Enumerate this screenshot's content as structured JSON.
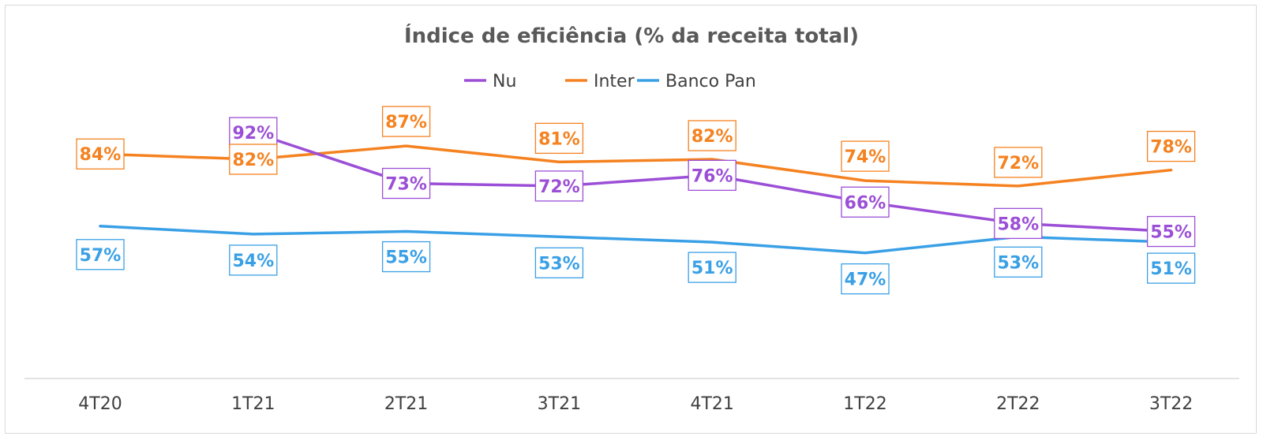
{
  "chart_data": {
    "type": "line",
    "title": "Índice de eficiência (% da receita total)",
    "xlabel": "",
    "ylabel": "",
    "categories": [
      "4T20",
      "1T21",
      "2T21",
      "3T21",
      "4T21",
      "1T22",
      "2T22",
      "3T22"
    ],
    "series": [
      {
        "name": "Nu",
        "color": "#9b4fd6",
        "values": [
          null,
          92,
          73,
          72,
          76,
          66,
          58,
          55
        ],
        "labels": [
          "",
          "92%",
          "73%",
          "72%",
          "76%",
          "66%",
          "58%",
          "55%"
        ]
      },
      {
        "name": "Inter",
        "color": "#f58220",
        "values": [
          84,
          82,
          87,
          81,
          82,
          74,
          72,
          78
        ],
        "labels": [
          "84%",
          "82%",
          "87%",
          "81%",
          "82%",
          "74%",
          "72%",
          "78%"
        ]
      },
      {
        "name": "Banco Pan",
        "color": "#3aa0e6",
        "values": [
          57,
          54,
          55,
          53,
          51,
          47,
          53,
          51
        ],
        "labels": [
          "57%",
          "54%",
          "55%",
          "53%",
          "51%",
          "47%",
          "53%",
          "51%"
        ]
      }
    ],
    "ylim": [
      0,
      120
    ],
    "grid": false,
    "legend": "top"
  }
}
